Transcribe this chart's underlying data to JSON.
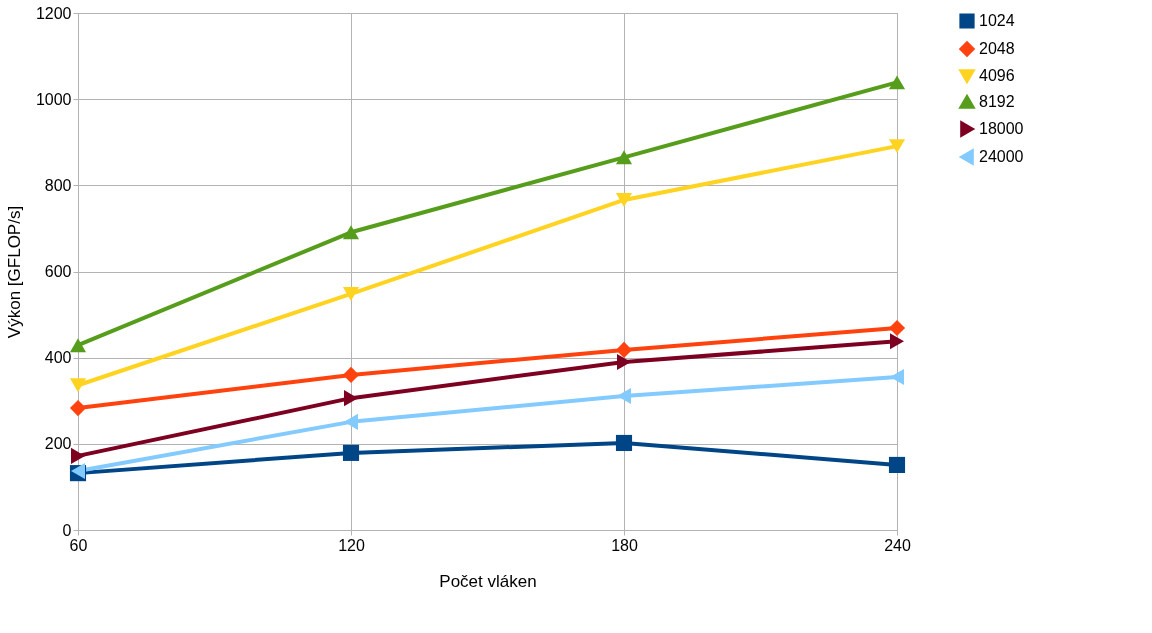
{
  "chart_data": {
    "type": "line",
    "xlabel": "Počet vláken",
    "ylabel": "Výkon [GFLOP/s]",
    "x": [
      60,
      120,
      180,
      240
    ],
    "series": [
      {
        "name": "1024",
        "color": "#004586",
        "marker": "square",
        "values": [
          132,
          179,
          202,
          151
        ]
      },
      {
        "name": "2048",
        "color": "#ff420e",
        "marker": "diamond",
        "values": [
          283,
          360,
          418,
          469
        ]
      },
      {
        "name": "4096",
        "color": "#ffd320",
        "marker": "triangle-down",
        "values": [
          336,
          548,
          766,
          891
        ]
      },
      {
        "name": "8192",
        "color": "#579d1c",
        "marker": "triangle",
        "values": [
          429,
          691,
          865,
          1039
        ]
      },
      {
        "name": "18000",
        "color": "#7e0021",
        "marker": "triangle-right",
        "values": [
          172,
          306,
          390,
          438
        ]
      },
      {
        "name": "24000",
        "color": "#83caff",
        "marker": "triangle-left",
        "values": [
          137,
          251,
          311,
          355
        ]
      }
    ],
    "xlim": [
      60,
      240
    ],
    "xticks": [
      60,
      120,
      180,
      240
    ],
    "ylim": [
      0,
      1200
    ],
    "yticks": [
      0,
      200,
      400,
      600,
      800,
      1000,
      1200
    ],
    "grid": true,
    "legend": "right",
    "line_style": "solid"
  }
}
